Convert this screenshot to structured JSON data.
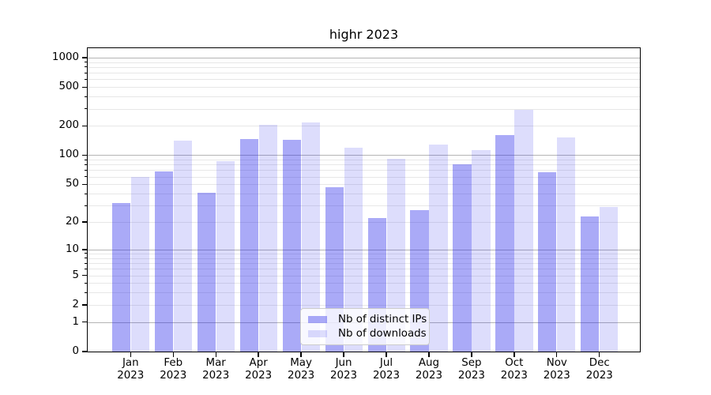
{
  "chart_data": {
    "type": "bar",
    "title": "highr 2023",
    "categories": [
      "Jan 2023",
      "Feb 2023",
      "Mar 2023",
      "Apr 2023",
      "May 2023",
      "Jun 2023",
      "Jul 2023",
      "Aug 2023",
      "Sep 2023",
      "Oct 2023",
      "Nov 2023",
      "Dec 2023"
    ],
    "series": [
      {
        "name": "Nb of distinct IPs",
        "color": "rgba(42,42,235,0.40)",
        "values": [
          32,
          68,
          41,
          147,
          143,
          47,
          22,
          27,
          80,
          160,
          67,
          23
        ]
      },
      {
        "name": "Nb of downloads",
        "color": "rgba(42,42,235,0.16)",
        "values": [
          60,
          142,
          86,
          204,
          216,
          120,
          92,
          129,
          112,
          292,
          152,
          29
        ]
      }
    ],
    "xlabel": "",
    "ylabel": "",
    "yscale": "log1p",
    "ylim": [
      0,
      1260
    ],
    "yticks": [
      0,
      1,
      2,
      5,
      10,
      20,
      50,
      100,
      200,
      500,
      1000
    ],
    "ytick_labels": [
      "0",
      "1",
      "2",
      "5",
      "10",
      "20",
      "50",
      "100",
      "200",
      "500",
      "1000"
    ],
    "minor_grid_values": [
      2,
      3,
      4,
      5,
      6,
      7,
      8,
      9,
      20,
      30,
      40,
      50,
      60,
      70,
      80,
      90,
      200,
      300,
      400,
      500,
      600,
      700,
      800,
      900
    ],
    "major_grid_values": [
      1,
      10,
      100,
      1000
    ],
    "grid": true,
    "legend_position": "lower center",
    "colors": {
      "spine": "#000000",
      "major_grid": "#b4b4b4",
      "minor_grid": "#e7e7e7",
      "background": "#ffffff"
    }
  }
}
